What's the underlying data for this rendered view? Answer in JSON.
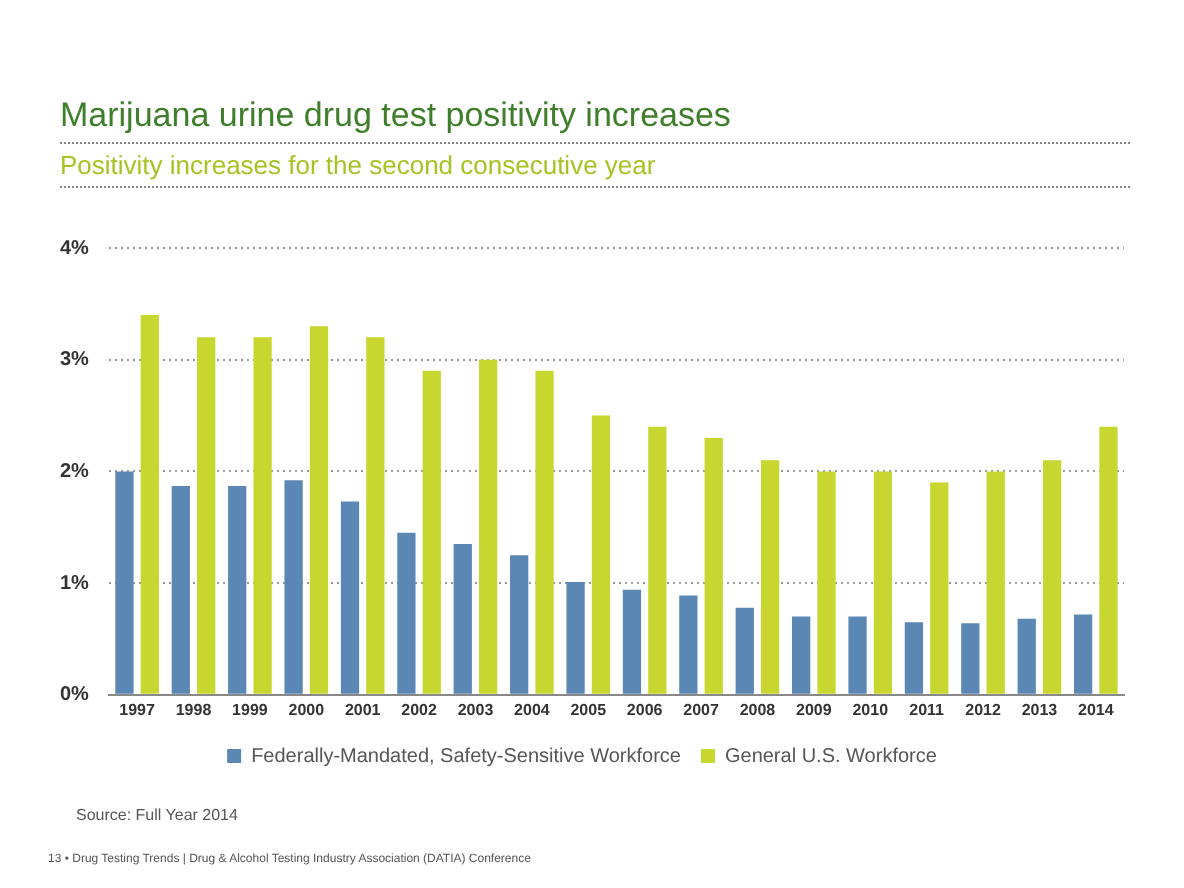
{
  "chart_data": {
    "type": "bar",
    "title": "Marijuana urine drug test positivity increases",
    "subtitle": "Positivity increases for the second consecutive year",
    "categories": [
      "1997",
      "1998",
      "1999",
      "2000",
      "2001",
      "2002",
      "2003",
      "2004",
      "2005",
      "2006",
      "2007",
      "2008",
      "2009",
      "2010",
      "2011",
      "2012",
      "2013",
      "2014"
    ],
    "series": [
      {
        "name": "Federally-Mandated, Safety-Sensitive Workforce",
        "color": "#5b87b5",
        "values": [
          2.0,
          1.87,
          1.87,
          1.92,
          1.73,
          1.45,
          1.35,
          1.25,
          1.01,
          0.94,
          0.89,
          0.78,
          0.7,
          0.7,
          0.65,
          0.64,
          0.68,
          0.72
        ]
      },
      {
        "name": "General U.S. Workforce",
        "color": "#c8d630",
        "values": [
          3.4,
          3.2,
          3.2,
          3.3,
          3.2,
          2.9,
          3.0,
          2.9,
          2.5,
          2.4,
          2.3,
          2.1,
          2.0,
          2.0,
          1.9,
          2.0,
          2.1,
          2.4
        ]
      }
    ],
    "ylim": [
      0,
      4
    ],
    "yticks": [
      {
        "value": 0,
        "label": "0%"
      },
      {
        "value": 1,
        "label": "1%"
      },
      {
        "value": 2,
        "label": "2%"
      },
      {
        "value": 3,
        "label": "3%"
      },
      {
        "value": 4,
        "label": "4%"
      }
    ],
    "grid": "y",
    "legend": "bottom",
    "annotations": [
      "Source: Full Year 2014",
      "13 • Drug Testing Trends | Drug & Alcohol Testing Industry Association (DATIA) Conference"
    ]
  }
}
